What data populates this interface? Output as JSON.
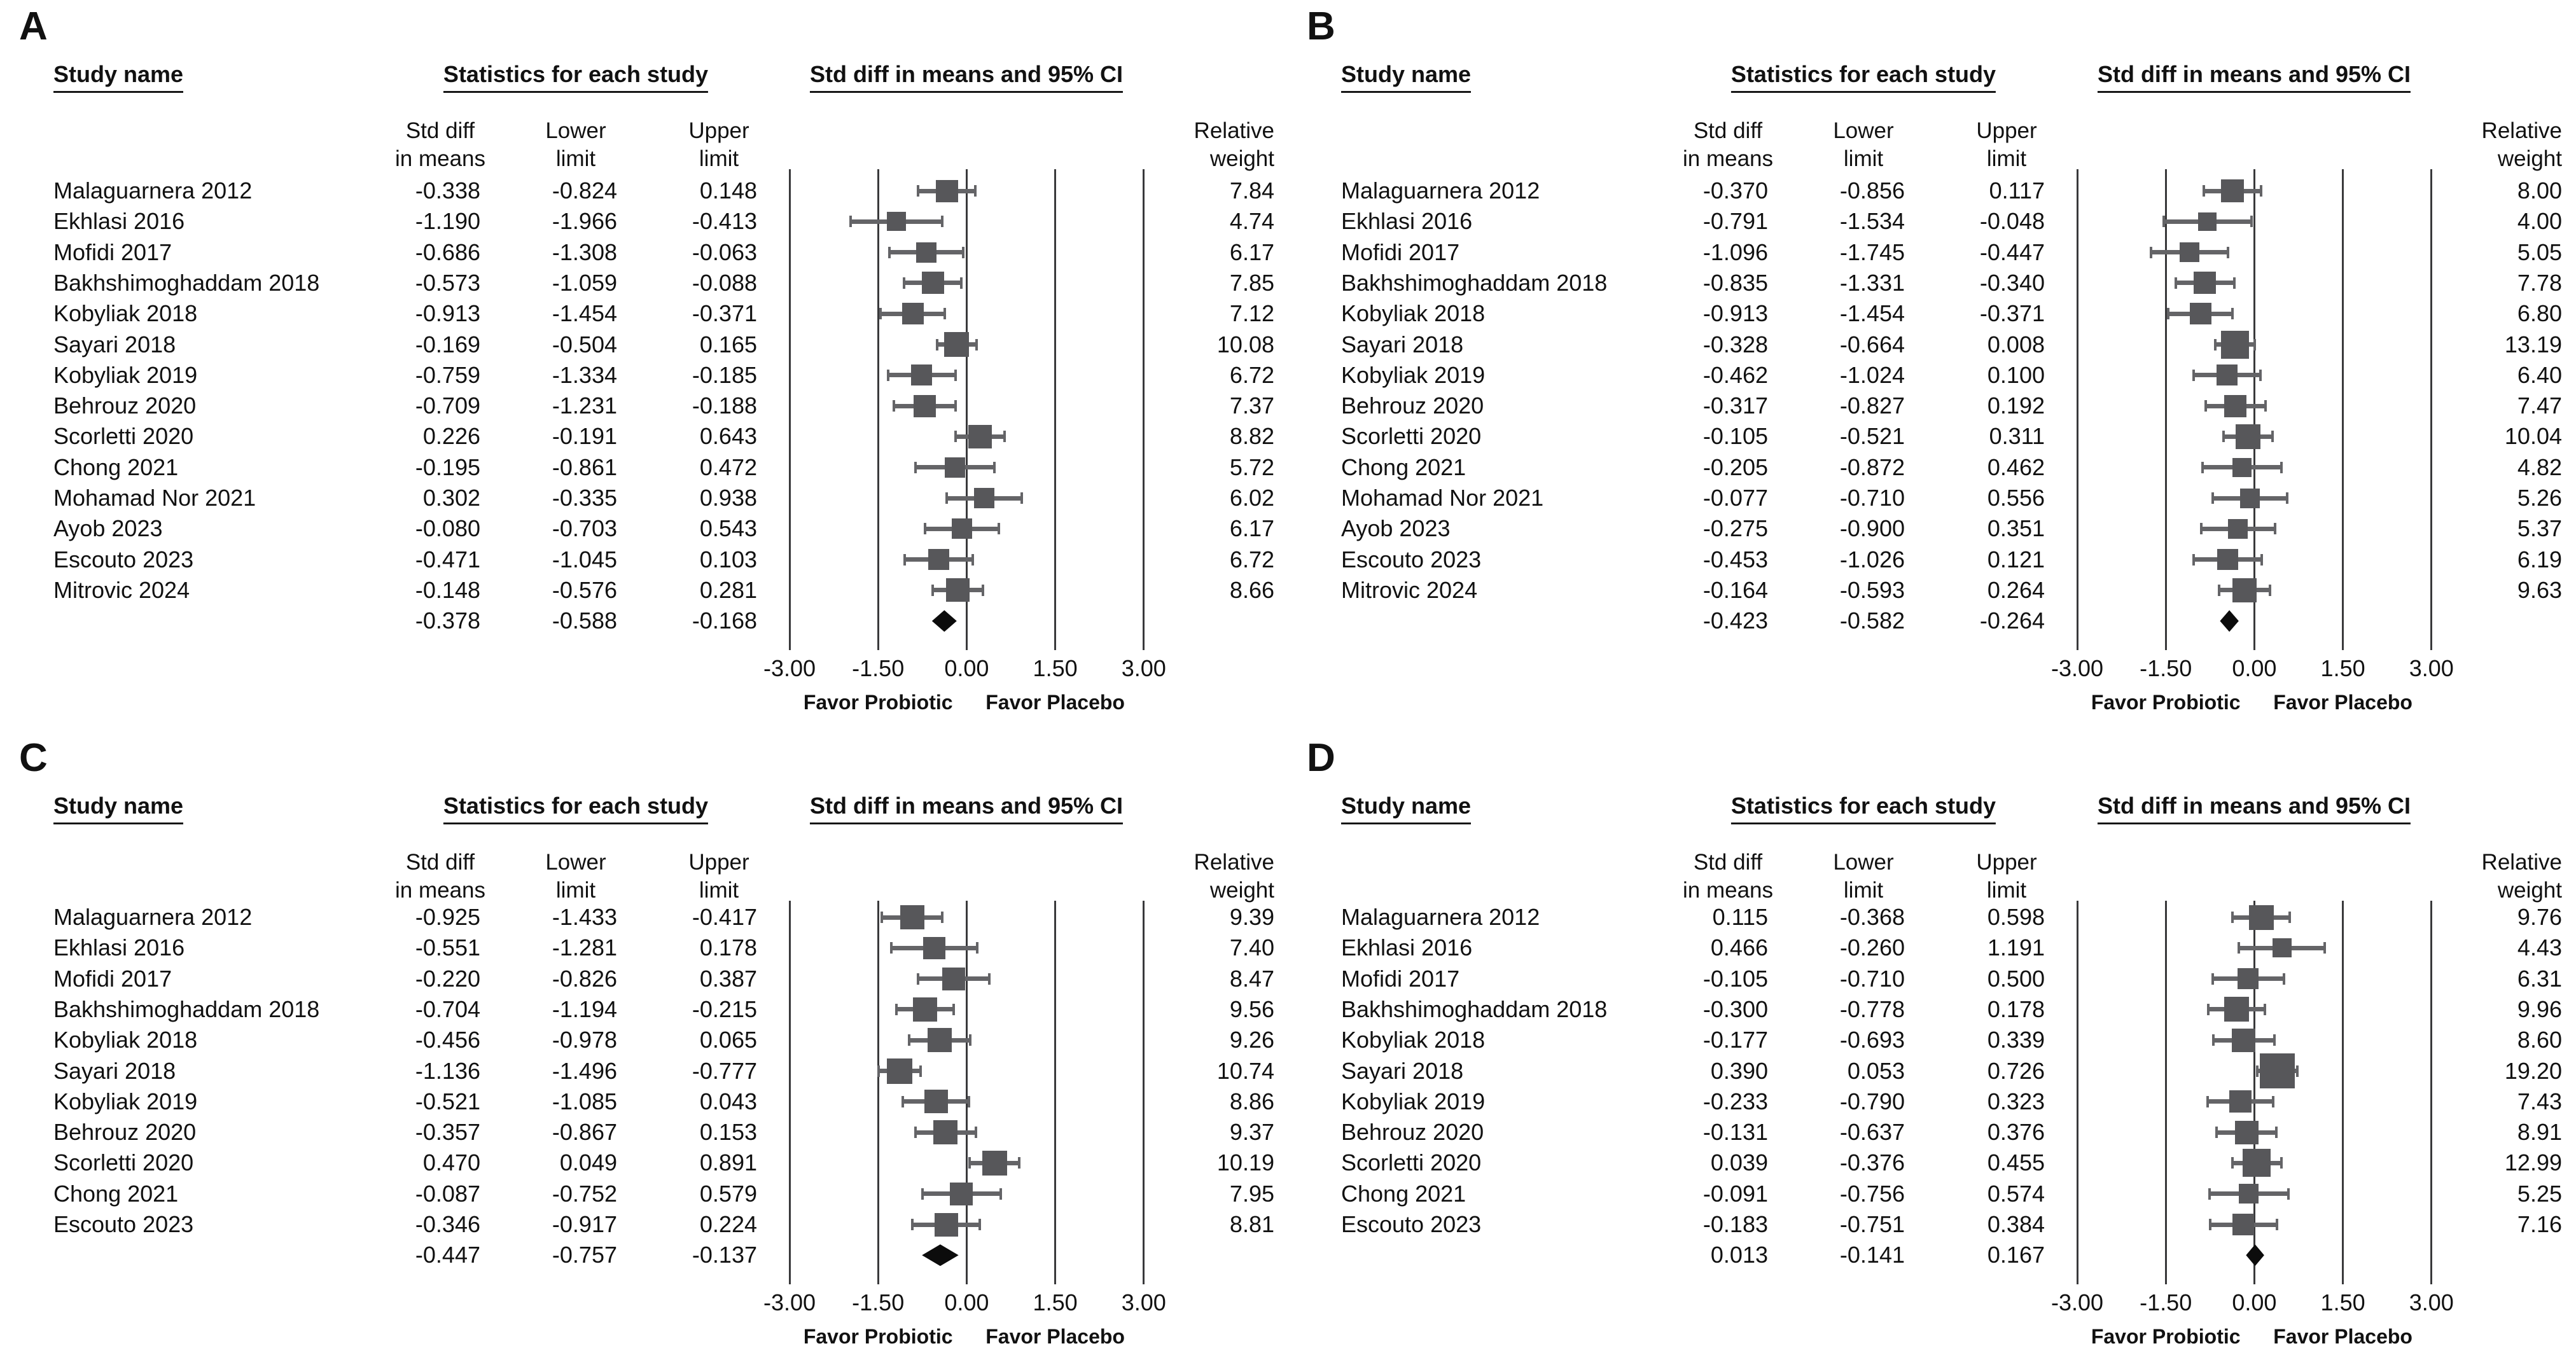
{
  "chart_data": {
    "type": "scatter",
    "subtype": "forest-plot-meta-analysis",
    "x_range": [
      -3,
      3
    ],
    "grid": "vertical-gridlines-at-ticks",
    "axis": {
      "tick_labels": [
        "-3.00",
        "-1.50",
        "0.00",
        "1.50",
        "3.00"
      ],
      "tick_values": [
        -3,
        -1.5,
        0,
        1.5,
        3
      ],
      "favor_left": "Favor Probiotic",
      "favor_right": "Favor Placebo"
    },
    "headers": {
      "study_name": "Study name",
      "statistics": "Statistics for each study",
      "plot": "Std diff in means and 95% CI",
      "std_diff_line1": "Std diff",
      "std_diff_line2": "in means",
      "lower_line1": "Lower",
      "lower_line2": "limit",
      "upper_line1": "Upper",
      "upper_line2": "limit",
      "weight_line1": "Relative",
      "weight_line2": "weight"
    },
    "colors": {
      "square": "#57575a",
      "ci_line": "#646467",
      "diamond": "#0c0c0c",
      "gridline": "#39393b",
      "text": "#111111"
    },
    "panels": [
      {
        "label": "A",
        "studies": [
          {
            "name": "Malaguarnera 2012",
            "std": "-0.338",
            "lower": "-0.824",
            "upper": "0.148",
            "weight": "7.84"
          },
          {
            "name": "Ekhlasi 2016",
            "std": "-1.190",
            "lower": "-1.966",
            "upper": "-0.413",
            "weight": "4.74"
          },
          {
            "name": "Mofidi 2017",
            "std": "-0.686",
            "lower": "-1.308",
            "upper": "-0.063",
            "weight": "6.17"
          },
          {
            "name": "Bakhshimoghaddam 2018",
            "std": "-0.573",
            "lower": "-1.059",
            "upper": "-0.088",
            "weight": "7.85"
          },
          {
            "name": "Kobyliak 2018",
            "std": "-0.913",
            "lower": "-1.454",
            "upper": "-0.371",
            "weight": "7.12"
          },
          {
            "name": "Sayari 2018",
            "std": "-0.169",
            "lower": "-0.504",
            "upper": "0.165",
            "weight": "10.08"
          },
          {
            "name": "Kobyliak 2019",
            "std": "-0.759",
            "lower": "-1.334",
            "upper": "-0.185",
            "weight": "6.72"
          },
          {
            "name": "Behrouz 2020",
            "std": "-0.709",
            "lower": "-1.231",
            "upper": "-0.188",
            "weight": "7.37"
          },
          {
            "name": "Scorletti 2020",
            "std": "0.226",
            "lower": "-0.191",
            "upper": "0.643",
            "weight": "8.82"
          },
          {
            "name": "Chong 2021",
            "std": "-0.195",
            "lower": "-0.861",
            "upper": "0.472",
            "weight": "5.72"
          },
          {
            "name": "Mohamad Nor 2021",
            "std": "0.302",
            "lower": "-0.335",
            "upper": "0.938",
            "weight": "6.02"
          },
          {
            "name": "Ayob 2023",
            "std": "-0.080",
            "lower": "-0.703",
            "upper": "0.543",
            "weight": "6.17"
          },
          {
            "name": "Escouto 2023",
            "std": "-0.471",
            "lower": "-1.045",
            "upper": "0.103",
            "weight": "6.72"
          },
          {
            "name": "Mitrovic 2024",
            "std": "-0.148",
            "lower": "-0.576",
            "upper": "0.281",
            "weight": "8.66"
          }
        ],
        "overall": {
          "std": "-0.378",
          "lower": "-0.588",
          "upper": "-0.168"
        }
      },
      {
        "label": "B",
        "studies": [
          {
            "name": "Malaguarnera 2012",
            "std": "-0.370",
            "lower": "-0.856",
            "upper": "0.117",
            "weight": "8.00"
          },
          {
            "name": "Ekhlasi 2016",
            "std": "-0.791",
            "lower": "-1.534",
            "upper": "-0.048",
            "weight": "4.00"
          },
          {
            "name": "Mofidi 2017",
            "std": "-1.096",
            "lower": "-1.745",
            "upper": "-0.447",
            "weight": "5.05"
          },
          {
            "name": "Bakhshimoghaddam 2018",
            "std": "-0.835",
            "lower": "-1.331",
            "upper": "-0.340",
            "weight": "7.78"
          },
          {
            "name": "Kobyliak 2018",
            "std": "-0.913",
            "lower": "-1.454",
            "upper": "-0.371",
            "weight": "6.80"
          },
          {
            "name": "Sayari 2018",
            "std": "-0.328",
            "lower": "-0.664",
            "upper": "0.008",
            "weight": "13.19"
          },
          {
            "name": "Kobyliak 2019",
            "std": "-0.462",
            "lower": "-1.024",
            "upper": "0.100",
            "weight": "6.40"
          },
          {
            "name": "Behrouz 2020",
            "std": "-0.317",
            "lower": "-0.827",
            "upper": "0.192",
            "weight": "7.47"
          },
          {
            "name": "Scorletti 2020",
            "std": "-0.105",
            "lower": "-0.521",
            "upper": "0.311",
            "weight": "10.04"
          },
          {
            "name": "Chong 2021",
            "std": "-0.205",
            "lower": "-0.872",
            "upper": "0.462",
            "weight": "4.82"
          },
          {
            "name": "Mohamad Nor 2021",
            "std": "-0.077",
            "lower": "-0.710",
            "upper": "0.556",
            "weight": "5.26"
          },
          {
            "name": "Ayob 2023",
            "std": "-0.275",
            "lower": "-0.900",
            "upper": "0.351",
            "weight": "5.37"
          },
          {
            "name": "Escouto 2023",
            "std": "-0.453",
            "lower": "-1.026",
            "upper": "0.121",
            "weight": "6.19"
          },
          {
            "name": "Mitrovic 2024",
            "std": "-0.164",
            "lower": "-0.593",
            "upper": "0.264",
            "weight": "9.63"
          }
        ],
        "overall": {
          "std": "-0.423",
          "lower": "-0.582",
          "upper": "-0.264"
        }
      },
      {
        "label": "C",
        "studies": [
          {
            "name": "Malaguarnera 2012",
            "std": "-0.925",
            "lower": "-1.433",
            "upper": "-0.417",
            "weight": "9.39"
          },
          {
            "name": "Ekhlasi 2016",
            "std": "-0.551",
            "lower": "-1.281",
            "upper": "0.178",
            "weight": "7.40"
          },
          {
            "name": "Mofidi 2017",
            "std": "-0.220",
            "lower": "-0.826",
            "upper": "0.387",
            "weight": "8.47"
          },
          {
            "name": "Bakhshimoghaddam 2018",
            "std": "-0.704",
            "lower": "-1.194",
            "upper": "-0.215",
            "weight": "9.56"
          },
          {
            "name": "Kobyliak 2018",
            "std": "-0.456",
            "lower": "-0.978",
            "upper": "0.065",
            "weight": "9.26"
          },
          {
            "name": "Sayari 2018",
            "std": "-1.136",
            "lower": "-1.496",
            "upper": "-0.777",
            "weight": "10.74"
          },
          {
            "name": "Kobyliak 2019",
            "std": "-0.521",
            "lower": "-1.085",
            "upper": "0.043",
            "weight": "8.86"
          },
          {
            "name": "Behrouz 2020",
            "std": "-0.357",
            "lower": "-0.867",
            "upper": "0.153",
            "weight": "9.37"
          },
          {
            "name": "Scorletti 2020",
            "std": "0.470",
            "lower": "0.049",
            "upper": "0.891",
            "weight": "10.19"
          },
          {
            "name": "Chong 2021",
            "std": "-0.087",
            "lower": "-0.752",
            "upper": "0.579",
            "weight": "7.95"
          },
          {
            "name": "Escouto 2023",
            "std": "-0.346",
            "lower": "-0.917",
            "upper": "0.224",
            "weight": "8.81"
          }
        ],
        "overall": {
          "std": "-0.447",
          "lower": "-0.757",
          "upper": "-0.137"
        }
      },
      {
        "label": "D",
        "studies": [
          {
            "name": "Malaguarnera 2012",
            "std": "0.115",
            "lower": "-0.368",
            "upper": "0.598",
            "weight": "9.76"
          },
          {
            "name": "Ekhlasi 2016",
            "std": "0.466",
            "lower": "-0.260",
            "upper": "1.191",
            "weight": "4.43"
          },
          {
            "name": "Mofidi 2017",
            "std": "-0.105",
            "lower": "-0.710",
            "upper": "0.500",
            "weight": "6.31"
          },
          {
            "name": "Bakhshimoghaddam 2018",
            "std": "-0.300",
            "lower": "-0.778",
            "upper": "0.178",
            "weight": "9.96"
          },
          {
            "name": "Kobyliak 2018",
            "std": "-0.177",
            "lower": "-0.693",
            "upper": "0.339",
            "weight": "8.60"
          },
          {
            "name": "Sayari 2018",
            "std": "0.390",
            "lower": "0.053",
            "upper": "0.726",
            "weight": "19.20"
          },
          {
            "name": "Kobyliak 2019",
            "std": "-0.233",
            "lower": "-0.790",
            "upper": "0.323",
            "weight": "7.43"
          },
          {
            "name": "Behrouz 2020",
            "std": "-0.131",
            "lower": "-0.637",
            "upper": "0.376",
            "weight": "8.91"
          },
          {
            "name": "Scorletti 2020",
            "std": "0.039",
            "lower": "-0.376",
            "upper": "0.455",
            "weight": "12.99"
          },
          {
            "name": "Chong 2021",
            "std": "-0.091",
            "lower": "-0.756",
            "upper": "0.574",
            "weight": "5.25"
          },
          {
            "name": "Escouto 2023",
            "std": "-0.183",
            "lower": "-0.751",
            "upper": "0.384",
            "weight": "7.16"
          }
        ],
        "overall": {
          "std": "0.013",
          "lower": "-0.141",
          "upper": "0.167"
        }
      }
    ]
  }
}
